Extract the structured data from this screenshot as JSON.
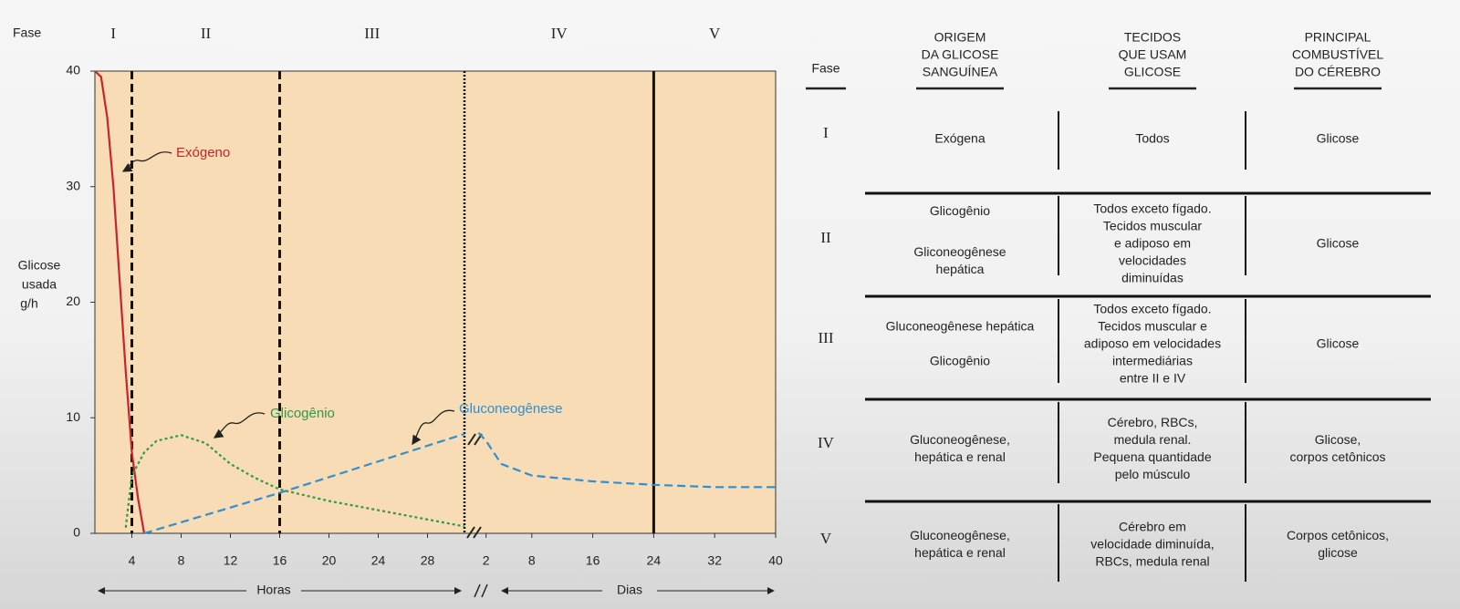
{
  "chart_data": {
    "type": "line",
    "phase_label": "Fase",
    "phases": [
      "I",
      "II",
      "III",
      "IV",
      "V"
    ],
    "y_label": [
      "Glicose",
      "usada",
      "g/h"
    ],
    "hours_label": "Horas",
    "days_label": "Dias",
    "ylim": [
      0,
      40
    ],
    "yticks": [
      0,
      10,
      20,
      30,
      40
    ],
    "hours_lim": [
      1,
      31
    ],
    "hours_ticks": [
      4,
      8,
      12,
      16,
      20,
      24,
      28
    ],
    "days_lim": [
      0,
      40
    ],
    "days_ticks": [
      2,
      8,
      16,
      24,
      32,
      40
    ],
    "phase_boundaries": [
      {
        "scale": "hours",
        "x": 4,
        "style": "dashed"
      },
      {
        "scale": "hours",
        "x": 16,
        "style": "dashed"
      },
      {
        "scale": "days",
        "x": 24,
        "style": "solid"
      }
    ],
    "series": [
      {
        "name": "Exógeno",
        "color": "#c8242f",
        "style": "solid",
        "segments": [
          {
            "scale": "hours",
            "x": [
              1,
              1.5,
              2,
              2.5,
              3,
              3.5,
              4,
              4.5,
              5
            ],
            "values": [
              40,
              39.5,
              36,
              30,
              22,
              14,
              7,
              3,
              0
            ]
          }
        ]
      },
      {
        "name": "Glicogênio",
        "color": "#2e9a48",
        "style": "dotted",
        "segments": [
          {
            "scale": "hours",
            "x": [
              3.5,
              4,
              5,
              6,
              8,
              10,
              12,
              14,
              16,
              20,
              24,
              28,
              31
            ],
            "values": [
              0.5,
              5,
              7,
              8,
              8.5,
              7.8,
              6,
              4.8,
              3.8,
              2.8,
              2,
              1.2,
              0.6
            ]
          }
        ]
      },
      {
        "name": "Gluconeogênese",
        "color": "#2f8fd0",
        "style": "dashed",
        "segments": [
          {
            "scale": "hours",
            "x": [
              5,
              16,
              31
            ],
            "values": [
              0,
              3.5,
              8.6
            ]
          },
          {
            "scale": "days",
            "x": [
              1,
              2,
              4,
              8,
              16,
              24,
              32,
              40
            ],
            "values": [
              8.7,
              8,
              6,
              5,
              4.5,
              4.2,
              4,
              4
            ]
          }
        ]
      }
    ]
  },
  "table": {
    "headers": {
      "fase": [
        "Fase"
      ],
      "origem": [
        "ORIGEM",
        "DA GLICOSE",
        "SANGUÍNEA"
      ],
      "tecidos": [
        "TECIDOS",
        "QUE USAM",
        "GLICOSE"
      ],
      "combustivel": [
        "PRINCIPAL",
        "COMBUSTÍVEL",
        "DO CÉREBRO"
      ]
    },
    "rows": [
      {
        "fase": "I",
        "origem": [
          "Exógena"
        ],
        "tecidos": [
          "Todos"
        ],
        "combustivel": [
          "Glicose"
        ]
      },
      {
        "fase": "II",
        "origem": [
          "Glicogênio",
          "Gliconeogênese",
          "hepática"
        ],
        "tecidos": [
          "Todos exceto fígado.",
          "Tecidos muscular",
          "e adiposo em",
          "velocidades",
          "diminuídas"
        ],
        "combustivel": [
          "Glicose"
        ]
      },
      {
        "fase": "III",
        "origem": [
          "Gluconeogênese hepática",
          "Glicogênio"
        ],
        "tecidos": [
          "Todos exceto fígado.",
          "Tecidos muscular e",
          "adiposo em velocidades",
          "intermediárias",
          "entre II e IV"
        ],
        "combustivel": [
          "Glicose"
        ]
      },
      {
        "fase": "IV",
        "origem": [
          "Gluconeogênese,",
          "hepática e renal"
        ],
        "tecidos": [
          "Cérebro, RBCs,",
          "medula renal.",
          "Pequena quantidade",
          "pelo músculo"
        ],
        "combustivel": [
          "Glicose,",
          "corpos cetônicos"
        ]
      },
      {
        "fase": "V",
        "origem": [
          "Gluconeogênese,",
          "hepática e renal"
        ],
        "tecidos": [
          "Cérebro em",
          "velocidade diminuída,",
          "RBCs, medula renal"
        ],
        "combustivel": [
          "Corpos cetônicos,",
          "glicose"
        ]
      }
    ]
  }
}
